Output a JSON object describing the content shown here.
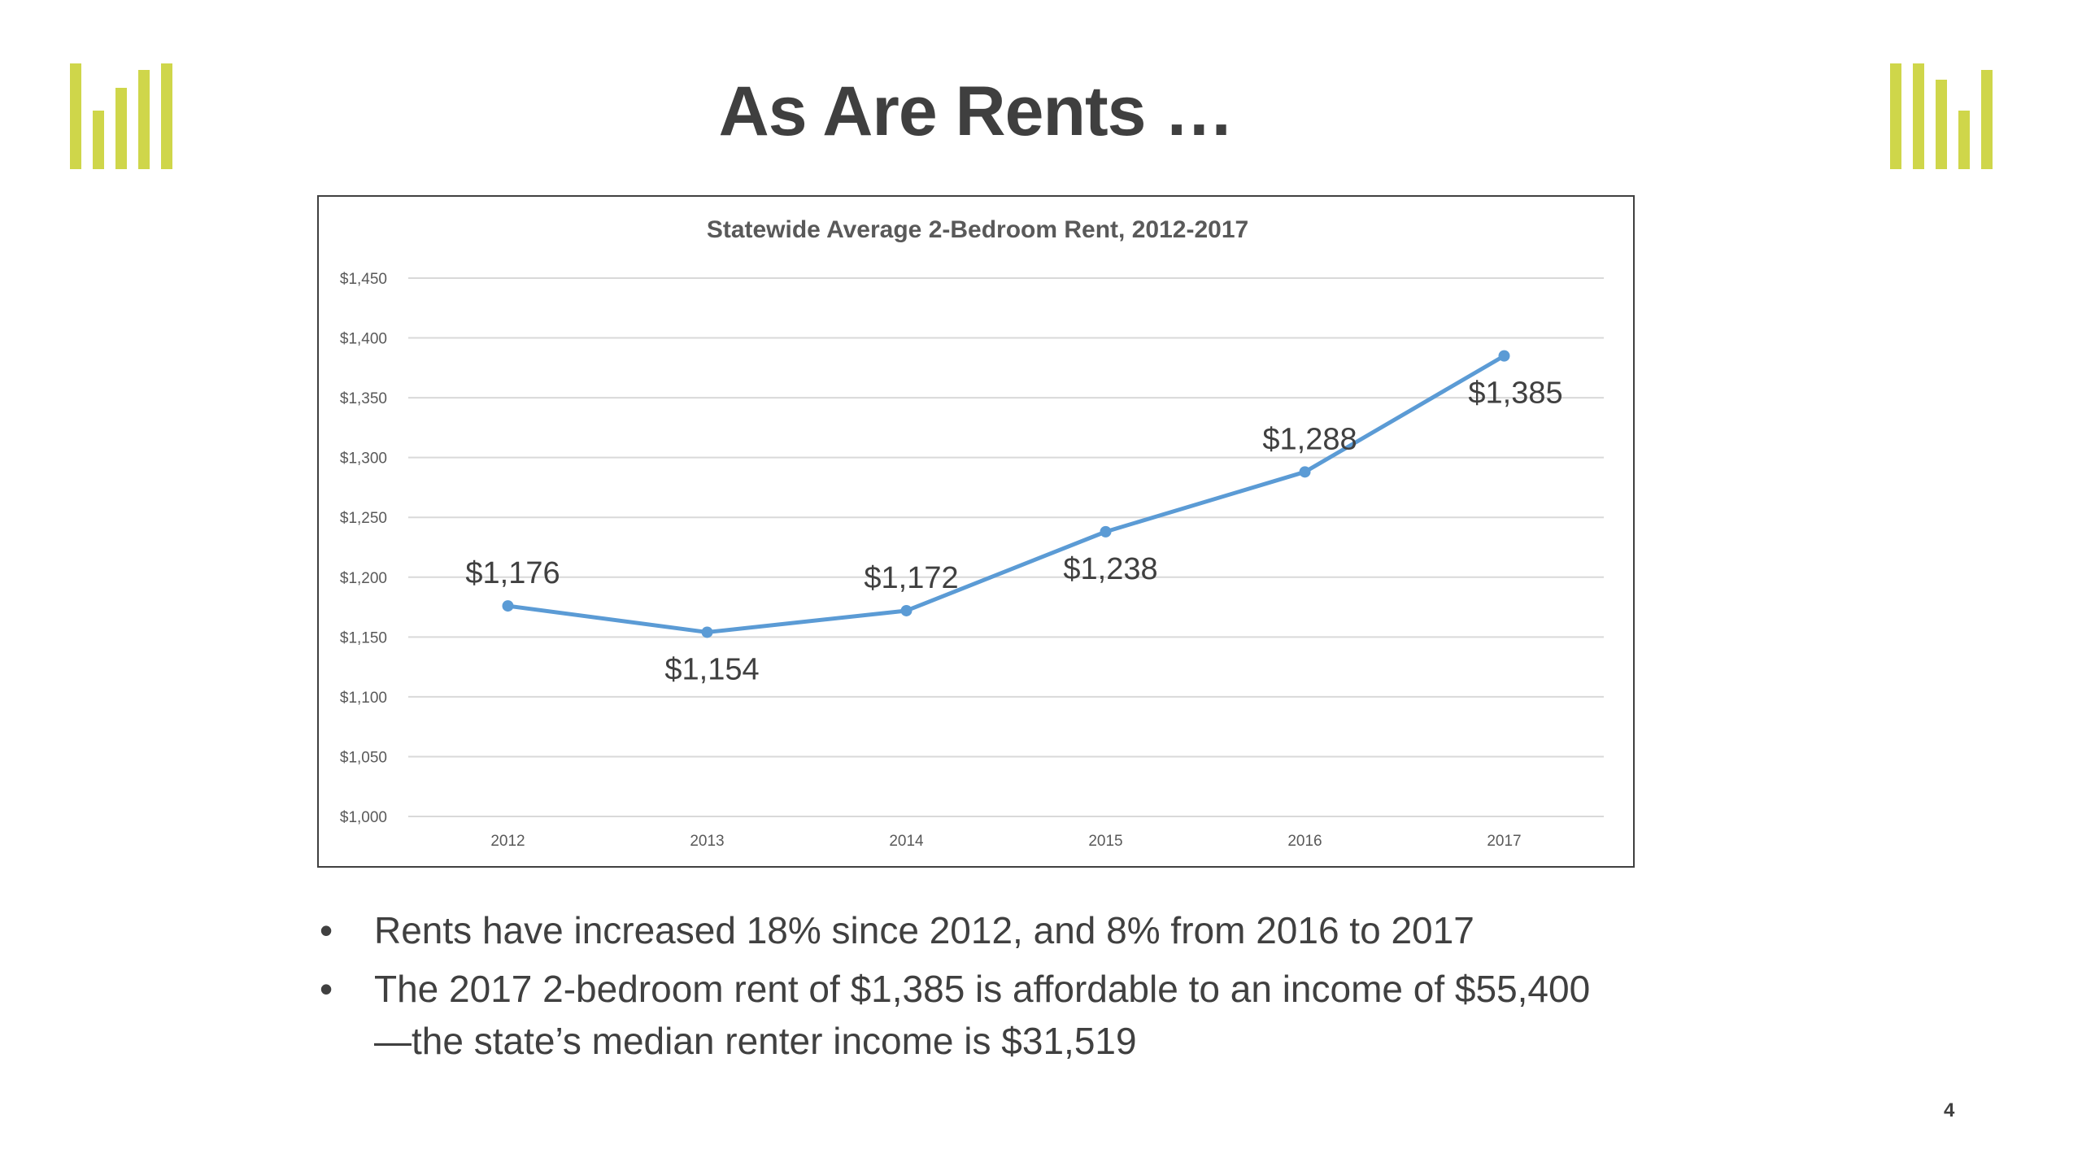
{
  "slide": {
    "title": "As Are Rents …",
    "page_number": "4",
    "bullets": [
      "Rents have increased 18% since 2012, and 8% from 2016 to 2017",
      "The 2017 2-bedroom rent of $1,385 is affordable to an income of $55,400—the state’s median renter income is $31,519"
    ],
    "bullet_glyph": "•",
    "logo_color": "#cfd64a"
  },
  "chart_data": {
    "type": "line",
    "title": "Statewide Average 2-Bedroom Rent, 2012-2017",
    "xlabel": "",
    "ylabel": "",
    "categories": [
      "2012",
      "2013",
      "2014",
      "2015",
      "2016",
      "2017"
    ],
    "series": [
      {
        "values": [
          1176,
          1154,
          1172,
          1238,
          1288,
          1385
        ],
        "color": "#5b9bd5"
      }
    ],
    "data_labels": [
      "$1,176",
      "$1,154",
      "$1,172",
      "$1,238",
      "$1,288",
      "$1,385"
    ],
    "label_positions": [
      "above",
      "below",
      "above",
      "below",
      "above",
      "below"
    ],
    "ylim": [
      1000,
      1450
    ],
    "y_ticks": [
      1000,
      1050,
      1100,
      1150,
      1200,
      1250,
      1300,
      1350,
      1400,
      1450
    ],
    "y_tick_labels": [
      "$1,000",
      "$1,050",
      "$1,100",
      "$1,150",
      "$1,200",
      "$1,250",
      "$1,300",
      "$1,350",
      "$1,400",
      "$1,450"
    ],
    "grid": true,
    "grid_color": "#d9d9d9",
    "legend": "none"
  }
}
